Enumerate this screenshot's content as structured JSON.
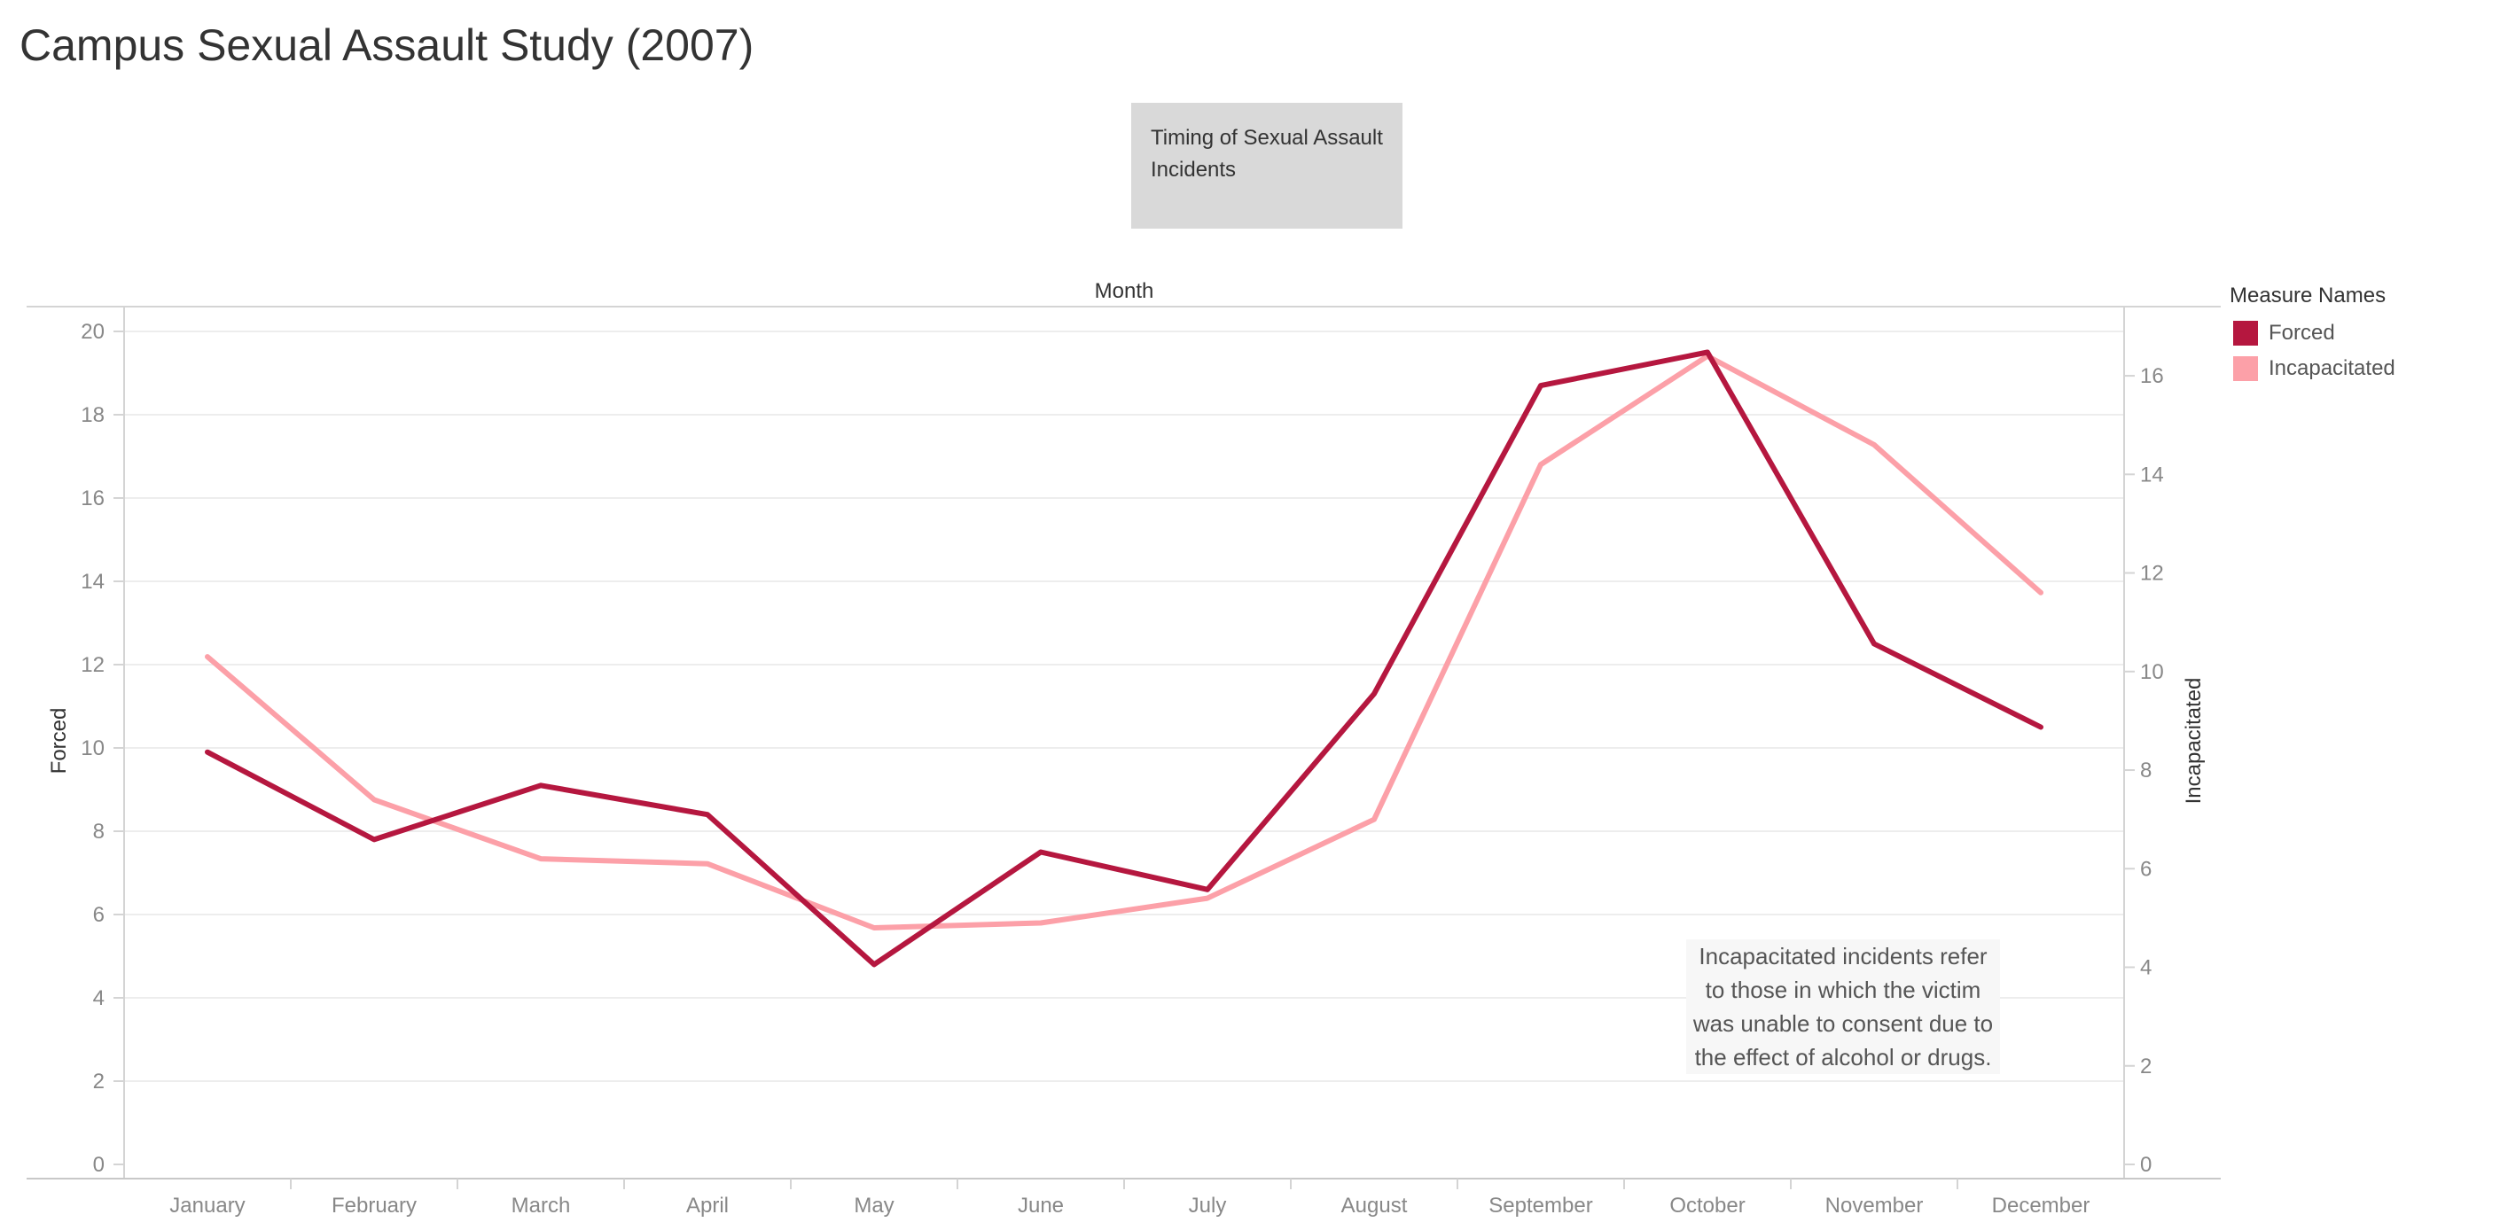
{
  "page": {
    "title": "Campus Sexual Assault Study (2007)",
    "subtitle": "Timing of Sexual Assault Incidents"
  },
  "legend": {
    "title": "Measure Names",
    "items": [
      {
        "label": "Forced",
        "color": "#b5173f"
      },
      {
        "label": "Incapacitated",
        "color": "#fca0a8"
      }
    ]
  },
  "annotation": "Incapacitated incidents refer to those in which the victim was unable to consent due to the effect of alcohol or drugs.",
  "chart_data": {
    "type": "line",
    "xlabel": "Month",
    "categories": [
      "January",
      "February",
      "March",
      "April",
      "May",
      "June",
      "July",
      "August",
      "September",
      "October",
      "November",
      "December"
    ],
    "series": [
      {
        "name": "Forced",
        "axis": "left",
        "color": "#b5173f",
        "values": [
          9.9,
          7.8,
          9.1,
          8.4,
          4.8,
          7.5,
          6.6,
          11.3,
          18.7,
          19.5,
          12.5,
          10.5
        ]
      },
      {
        "name": "Incapacitated",
        "axis": "right",
        "color": "#fca0a8",
        "values": [
          10.3,
          7.4,
          6.2,
          6.1,
          4.8,
          4.9,
          5.4,
          7.0,
          14.2,
          16.4,
          14.6,
          11.6
        ]
      }
    ],
    "y_left": {
      "label": "Forced",
      "range": [
        0,
        20
      ],
      "ticks": [
        0,
        2,
        4,
        6,
        8,
        10,
        12,
        14,
        16,
        18,
        20
      ]
    },
    "y_right": {
      "label": "Incapacitated",
      "range": [
        0,
        16.9
      ],
      "ticks": [
        0,
        2,
        4,
        6,
        8,
        10,
        12,
        14,
        16
      ]
    },
    "grid": true,
    "legend_position": "right"
  }
}
